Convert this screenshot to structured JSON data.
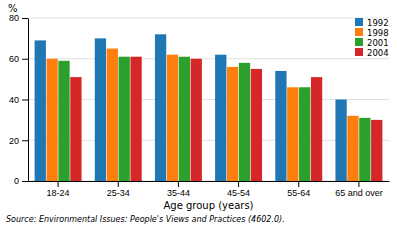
{
  "chart_data": {
    "type": "bar",
    "categories": [
      "18-24",
      "25-34",
      "35-44",
      "45-54",
      "55-64",
      "65 and over"
    ],
    "series": [
      {
        "name": "1992",
        "values": [
          69,
          70,
          72,
          62,
          54,
          40
        ]
      },
      {
        "name": "1998",
        "values": [
          60,
          65,
          62,
          56,
          46,
          32
        ]
      },
      {
        "name": "2001",
        "values": [
          59,
          61,
          61,
          58,
          46,
          31
        ]
      },
      {
        "name": "2004",
        "values": [
          51,
          61,
          60,
          55,
          51,
          30
        ]
      }
    ],
    "xlabel": "Age group (years)",
    "ylabel": "%",
    "ylim": [
      0,
      80
    ],
    "yticks": [
      0,
      20,
      40,
      60,
      80
    ],
    "grid": true,
    "legend": "upper right",
    "annotations": [
      "Source: Environmental Issues: People's Views and Practices (4602.0)."
    ]
  }
}
